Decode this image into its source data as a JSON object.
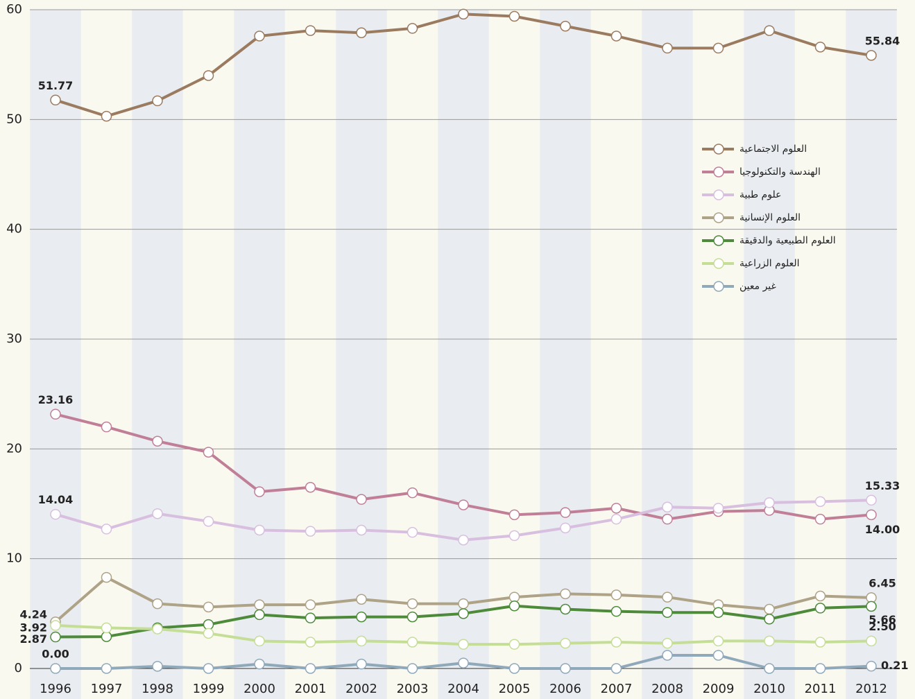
{
  "chart_data": {
    "type": "line",
    "categories": [
      "1996",
      "1997",
      "1998",
      "1999",
      "2000",
      "2001",
      "2002",
      "2003",
      "2004",
      "2005",
      "2006",
      "2007",
      "2008",
      "2009",
      "2010",
      "2011",
      "2012"
    ],
    "ylim": [
      0,
      60
    ],
    "yticks": [
      0,
      10,
      20,
      30,
      40,
      50,
      60
    ],
    "grid": true,
    "legend": "right",
    "series": [
      {
        "name": "العلوم الاجتماعية",
        "color": "#9b7b60",
        "values": [
          51.77,
          50.3,
          51.7,
          54.0,
          57.6,
          58.1,
          57.9,
          58.3,
          59.6,
          59.4,
          58.5,
          57.6,
          56.5,
          56.5,
          58.1,
          56.6,
          55.84
        ],
        "value_labels": [
          "51.77",
          null,
          null,
          null,
          null,
          null,
          null,
          null,
          null,
          null,
          null,
          null,
          null,
          null,
          null,
          null,
          "55.84"
        ]
      },
      {
        "name": "الهندسة والتكنولوجيا",
        "color": "#c07f96",
        "values": [
          23.16,
          22.0,
          20.7,
          19.7,
          16.1,
          16.5,
          15.4,
          16.0,
          14.9,
          14.0,
          14.2,
          14.6,
          13.6,
          14.3,
          14.4,
          13.6,
          14.0
        ],
        "value_labels": [
          "23.16",
          null,
          null,
          null,
          null,
          null,
          null,
          null,
          null,
          null,
          null,
          null,
          null,
          null,
          null,
          null,
          "14.00"
        ]
      },
      {
        "name": "علوم طبية",
        "color": "#d8bfdf",
        "values": [
          14.04,
          12.7,
          14.1,
          13.4,
          12.6,
          12.5,
          12.6,
          12.4,
          11.7,
          12.1,
          12.8,
          13.6,
          14.7,
          14.6,
          15.1,
          15.2,
          15.33
        ],
        "value_labels": [
          "14.04",
          null,
          null,
          null,
          null,
          null,
          null,
          null,
          null,
          null,
          null,
          null,
          null,
          null,
          null,
          null,
          "15.33"
        ]
      },
      {
        "name": "العلوم الإنسانية",
        "color": "#aea287",
        "values": [
          4.24,
          8.3,
          5.9,
          5.6,
          5.8,
          5.8,
          6.3,
          5.9,
          5.9,
          6.5,
          6.8,
          6.7,
          6.5,
          5.8,
          5.4,
          6.6,
          6.45
        ],
        "value_labels": [
          "4.24",
          null,
          null,
          null,
          null,
          null,
          null,
          null,
          null,
          null,
          null,
          null,
          null,
          null,
          null,
          null,
          "6.45"
        ]
      },
      {
        "name": "العلوم الطبيعية والدقيقة",
        "color": "#4d8a3a",
        "values": [
          2.87,
          2.9,
          3.7,
          4.0,
          4.9,
          4.6,
          4.7,
          4.7,
          5.0,
          5.7,
          5.4,
          5.2,
          5.1,
          5.1,
          4.5,
          5.5,
          5.66
        ],
        "value_labels": [
          "2.87",
          null,
          null,
          null,
          null,
          null,
          null,
          null,
          null,
          null,
          null,
          null,
          null,
          null,
          null,
          null,
          "5.66"
        ]
      },
      {
        "name": "العلوم الزراعية",
        "color": "#c5de96",
        "values": [
          3.92,
          3.7,
          3.6,
          3.2,
          2.5,
          2.4,
          2.5,
          2.4,
          2.2,
          2.2,
          2.3,
          2.4,
          2.3,
          2.5,
          2.5,
          2.4,
          2.5
        ],
        "value_labels": [
          "3.92",
          null,
          null,
          null,
          null,
          null,
          null,
          null,
          null,
          null,
          null,
          null,
          null,
          null,
          null,
          null,
          "2.50"
        ]
      },
      {
        "name": "غير معين",
        "color": "#8fa9bb",
        "values": [
          0.0,
          0.0,
          0.2,
          0.0,
          0.4,
          0.0,
          0.4,
          0.0,
          0.5,
          0.0,
          0.0,
          0.0,
          1.2,
          1.2,
          0.0,
          0.0,
          0.21
        ],
        "value_labels": [
          "0.00",
          null,
          null,
          null,
          null,
          null,
          null,
          null,
          null,
          null,
          null,
          null,
          null,
          null,
          null,
          null,
          "0.21"
        ]
      }
    ]
  }
}
